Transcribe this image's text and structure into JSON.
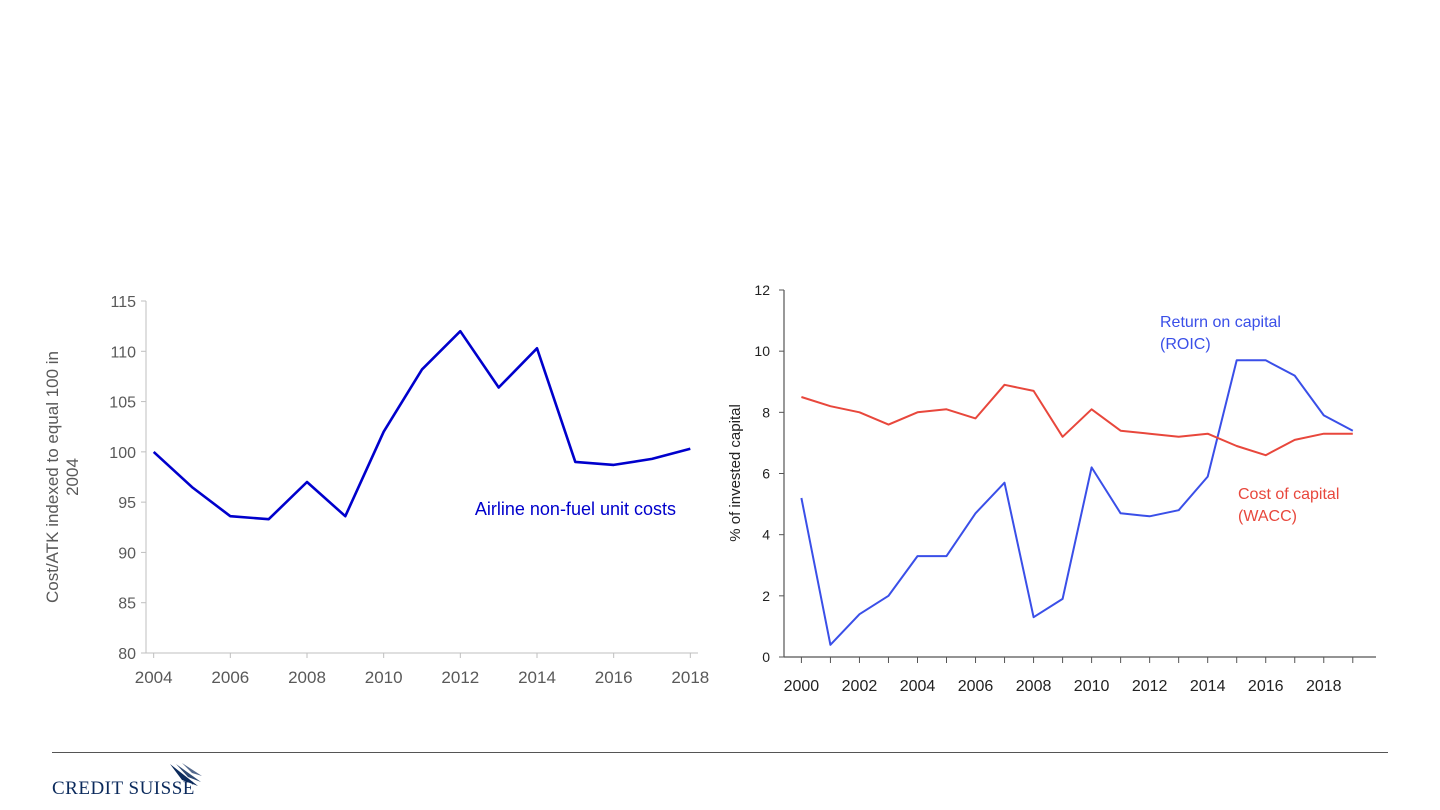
{
  "brand": {
    "name": "CREDIT SUISSE",
    "navy": "#0b2a5c"
  },
  "chart_data": [
    {
      "type": "line",
      "title": "",
      "xlabel": "",
      "ylabel": "Cost/ATK indexed to equal 100 in 2004",
      "ylabel_lines": [
        "Cost/ATK indexed to equal 100 in",
        "2004"
      ],
      "xlim": [
        2003.8,
        2018.2
      ],
      "ylim": [
        80,
        115
      ],
      "x_ticks": [
        2004,
        2006,
        2008,
        2010,
        2012,
        2014,
        2016,
        2018
      ],
      "y_ticks": [
        80,
        85,
        90,
        95,
        100,
        105,
        110,
        115
      ],
      "grid": false,
      "annotation": "Airline non-fuel unit costs",
      "series": [
        {
          "color": "#0000cc",
          "x": [
            2004,
            2005,
            2006,
            2007,
            2008,
            2009,
            2010,
            2011,
            2012,
            2013,
            2014,
            2015,
            2016,
            2017,
            2018
          ],
          "y": [
            100,
            96.5,
            93.6,
            93.3,
            97,
            93.6,
            102,
            108.2,
            112,
            106.4,
            110.3,
            99,
            98.7,
            99.3,
            100.3
          ]
        }
      ]
    },
    {
      "type": "line",
      "title": "",
      "xlabel": "",
      "ylabel": "% of invested capital",
      "xlim": [
        1999.4,
        2019.8
      ],
      "ylim": [
        0,
        12
      ],
      "x_ticks": [
        2000,
        2002,
        2004,
        2006,
        2008,
        2010,
        2012,
        2014,
        2016,
        2018
      ],
      "y_ticks": [
        0,
        2,
        4,
        6,
        8,
        10,
        12
      ],
      "grid": false,
      "series": [
        {
          "label_lines": [
            "Return on capital",
            "(ROIC)"
          ],
          "color": "#3a4fe8",
          "x": [
            2000,
            2001,
            2002,
            2003,
            2004,
            2005,
            2006,
            2007,
            2008,
            2009,
            2010,
            2011,
            2012,
            2013,
            2014,
            2015,
            2016,
            2017,
            2018,
            2019
          ],
          "y": [
            5.2,
            0.4,
            1.4,
            2.0,
            3.3,
            3.3,
            4.7,
            5.7,
            1.3,
            1.9,
            6.2,
            4.7,
            4.6,
            4.8,
            5.9,
            9.7,
            9.7,
            9.2,
            7.9,
            7.4
          ]
        },
        {
          "label_lines": [
            "Cost of capital",
            "(WACC)"
          ],
          "color": "#e8473c",
          "x": [
            2000,
            2001,
            2002,
            2003,
            2004,
            2005,
            2006,
            2007,
            2008,
            2009,
            2010,
            2011,
            2012,
            2013,
            2014,
            2015,
            2016,
            2017,
            2018,
            2019
          ],
          "y": [
            8.5,
            8.2,
            8.0,
            7.6,
            8.0,
            8.1,
            7.8,
            8.9,
            8.7,
            7.2,
            8.1,
            7.4,
            7.3,
            7.2,
            7.3,
            6.9,
            6.6,
            7.1,
            7.3,
            7.3
          ]
        }
      ]
    }
  ]
}
